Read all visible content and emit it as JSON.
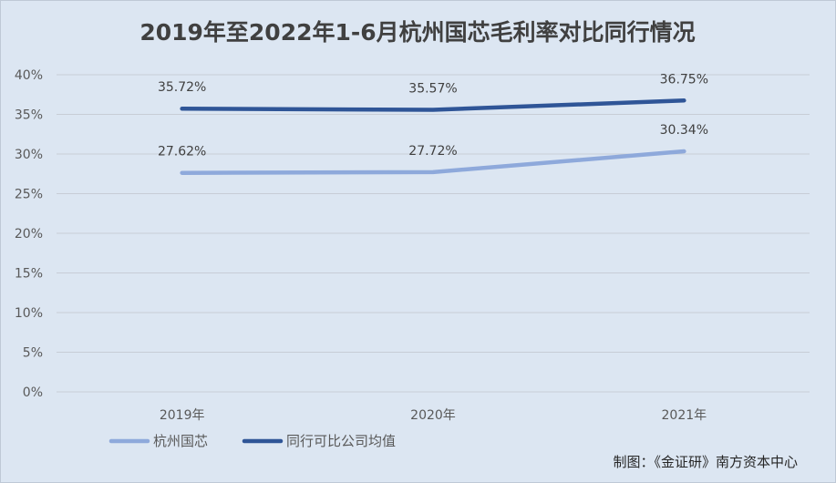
{
  "chart_data": {
    "type": "line",
    "title": "2019年至2022年1-6月杭州国芯毛利率对比同行情况",
    "categories": [
      "2019年",
      "2020年",
      "2021年"
    ],
    "y_ticks": [
      "0%",
      "5%",
      "10%",
      "15%",
      "20%",
      "25%",
      "30%",
      "35%",
      "40%"
    ],
    "ylim": [
      0,
      40
    ],
    "grid": true,
    "legend_position": "bottom-left",
    "series": [
      {
        "name": "杭州国芯",
        "values": [
          27.62,
          27.72,
          30.34
        ],
        "labels": [
          "27.62%",
          "27.72%",
          "30.34%"
        ],
        "color": "#8EA9DB"
      },
      {
        "name": "同行可比公司均值",
        "values": [
          35.72,
          35.57,
          36.75
        ],
        "labels": [
          "35.72%",
          "35.57%",
          "36.75%"
        ],
        "color": "#2F5597"
      }
    ],
    "source": "制图：《金证研》南方资本中心"
  }
}
